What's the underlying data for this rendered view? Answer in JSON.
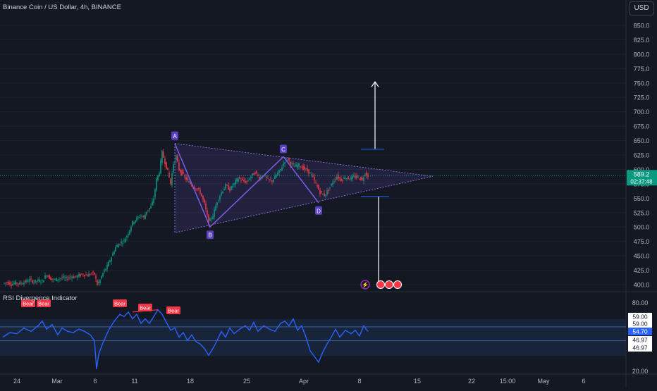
{
  "header": {
    "symbol_title": "Binance Coin / US Dollar, 4h, BINANCE",
    "currency_button": "USD"
  },
  "price_axis": {
    "ticks": [
      "850.0",
      "825.0",
      "800.0",
      "775.0",
      "750.0",
      "725.0",
      "700.0",
      "675.0",
      "650.0",
      "625.0",
      "600.0",
      "575.0",
      "550.0",
      "525.0",
      "500.0",
      "475.0",
      "450.0",
      "425.0",
      "400.0"
    ],
    "current_price": "589.2",
    "countdown": "02:37:48",
    "current_color": "#089981"
  },
  "time_axis": {
    "labels": [
      "24",
      "Mar",
      "6",
      "11",
      "18",
      "25",
      "Apr",
      "8",
      "15",
      "22",
      "15:00",
      "May",
      "6"
    ]
  },
  "pattern": {
    "points": [
      "A",
      "B",
      "C",
      "D"
    ],
    "fill_color": "#4a3a8c",
    "label_color": "#5b3fc4"
  },
  "markers": {
    "count": 4
  },
  "rsi_panel": {
    "title": "RSI Divergence Indicator",
    "bear_label": "Bear",
    "axis_ticks": [
      "80.00",
      "20.00"
    ],
    "value_labels": [
      "59.00",
      "59.00",
      "54.70",
      "46.97",
      "46.97"
    ],
    "line_color": "#2962ff",
    "bear_color": "#f23645"
  },
  "chart_data": {
    "type": "candlestick",
    "title": "Binance Coin / US Dollar, 4h, BINANCE",
    "ylim": [
      400,
      862
    ],
    "close_series": [
      [
        0,
        402
      ],
      [
        6,
        404
      ],
      [
        12,
        401
      ],
      [
        18,
        403
      ],
      [
        24,
        402
      ],
      [
        30,
        404
      ],
      [
        38,
        408
      ],
      [
        44,
        405
      ],
      [
        50,
        407
      ],
      [
        56,
        406
      ],
      [
        62,
        418
      ],
      [
        66,
        412
      ],
      [
        72,
        408
      ],
      [
        78,
        410
      ],
      [
        84,
        412
      ],
      [
        90,
        410
      ],
      [
        96,
        414
      ],
      [
        102,
        413
      ],
      [
        108,
        416
      ],
      [
        114,
        418
      ],
      [
        120,
        416
      ],
      [
        126,
        420
      ],
      [
        130,
        418
      ],
      [
        134,
        400
      ],
      [
        138,
        408
      ],
      [
        142,
        420
      ],
      [
        148,
        432
      ],
      [
        154,
        448
      ],
      [
        160,
        465
      ],
      [
        166,
        472
      ],
      [
        172,
        476
      ],
      [
        178,
        490
      ],
      [
        184,
        508
      ],
      [
        190,
        515
      ],
      [
        196,
        520
      ],
      [
        200,
        516
      ],
      [
        204,
        528
      ],
      [
        210,
        535
      ],
      [
        214,
        550
      ],
      [
        218,
        582
      ],
      [
        222,
        596
      ],
      [
        226,
        630
      ],
      [
        230,
        612
      ],
      [
        234,
        596
      ],
      [
        238,
        575
      ],
      [
        242,
        610
      ],
      [
        246,
        622
      ],
      [
        250,
        600
      ],
      [
        256,
        590
      ],
      [
        262,
        580
      ],
      [
        268,
        572
      ],
      [
        274,
        568
      ],
      [
        280,
        560
      ],
      [
        286,
        540
      ],
      [
        292,
        508
      ],
      [
        298,
        520
      ],
      [
        304,
        545
      ],
      [
        310,
        560
      ],
      [
        316,
        572
      ],
      [
        322,
        565
      ],
      [
        328,
        575
      ],
      [
        334,
        585
      ],
      [
        340,
        580
      ],
      [
        346,
        578
      ],
      [
        352,
        588
      ],
      [
        358,
        595
      ],
      [
        364,
        585
      ],
      [
        370,
        590
      ],
      [
        376,
        582
      ],
      [
        382,
        580
      ],
      [
        388,
        590
      ],
      [
        394,
        600
      ],
      [
        400,
        615
      ],
      [
        404,
        618
      ],
      [
        408,
        610
      ],
      [
        414,
        605
      ],
      [
        420,
        608
      ],
      [
        426,
        602
      ],
      [
        432,
        598
      ],
      [
        438,
        590
      ],
      [
        444,
        575
      ],
      [
        450,
        560
      ],
      [
        456,
        555
      ],
      [
        462,
        565
      ],
      [
        468,
        578
      ],
      [
        474,
        588
      ],
      [
        480,
        582
      ],
      [
        486,
        586
      ],
      [
        492,
        584
      ],
      [
        498,
        587
      ],
      [
        504,
        586
      ],
      [
        510,
        582
      ],
      [
        514,
        594
      ],
      [
        518,
        589
      ]
    ],
    "pattern_ABCD": {
      "A": 645,
      "B": 500,
      "C": 622,
      "D": 542
    },
    "triangle": {
      "upper_start": 645,
      "lower_start": 490,
      "apex": 588
    },
    "arrow_target": 752,
    "arrow_bottom_target": 403,
    "rsi_ylim": [
      20,
      80
    ],
    "rsi_bands": [
      46.97,
      59.0
    ],
    "rsi_current": 54.7,
    "rsi_series": [
      [
        0,
        50
      ],
      [
        10,
        54
      ],
      [
        20,
        53
      ],
      [
        30,
        58
      ],
      [
        40,
        55
      ],
      [
        50,
        60
      ],
      [
        56,
        64
      ],
      [
        62,
        57
      ],
      [
        70,
        61
      ],
      [
        78,
        52
      ],
      [
        84,
        58
      ],
      [
        92,
        55
      ],
      [
        100,
        54
      ],
      [
        108,
        57
      ],
      [
        116,
        55
      ],
      [
        124,
        52
      ],
      [
        130,
        47
      ],
      [
        133,
        22
      ],
      [
        136,
        35
      ],
      [
        142,
        45
      ],
      [
        150,
        56
      ],
      [
        158,
        64
      ],
      [
        166,
        70
      ],
      [
        172,
        68
      ],
      [
        178,
        72
      ],
      [
        184,
        66
      ],
      [
        190,
        70
      ],
      [
        196,
        62
      ],
      [
        202,
        66
      ],
      [
        208,
        62
      ],
      [
        214,
        68
      ],
      [
        220,
        74
      ],
      [
        226,
        70
      ],
      [
        232,
        63
      ],
      [
        238,
        56
      ],
      [
        244,
        58
      ],
      [
        250,
        50
      ],
      [
        256,
        54
      ],
      [
        262,
        47
      ],
      [
        268,
        52
      ],
      [
        274,
        46
      ],
      [
        280,
        44
      ],
      [
        286,
        40
      ],
      [
        292,
        34
      ],
      [
        298,
        40
      ],
      [
        304,
        47
      ],
      [
        310,
        55
      ],
      [
        316,
        50
      ],
      [
        322,
        58
      ],
      [
        328,
        53
      ],
      [
        336,
        57
      ],
      [
        344,
        60
      ],
      [
        350,
        56
      ],
      [
        356,
        63
      ],
      [
        362,
        55
      ],
      [
        370,
        60
      ],
      [
        378,
        57
      ],
      [
        386,
        55
      ],
      [
        394,
        62
      ],
      [
        400,
        64
      ],
      [
        406,
        60
      ],
      [
        412,
        66
      ],
      [
        418,
        56
      ],
      [
        424,
        60
      ],
      [
        430,
        50
      ],
      [
        436,
        38
      ],
      [
        442,
        33
      ],
      [
        448,
        28
      ],
      [
        454,
        37
      ],
      [
        460,
        44
      ],
      [
        466,
        50
      ],
      [
        472,
        57
      ],
      [
        478,
        50
      ],
      [
        486,
        56
      ],
      [
        494,
        53
      ],
      [
        500,
        56
      ],
      [
        506,
        51
      ],
      [
        512,
        60
      ],
      [
        518,
        55
      ]
    ]
  }
}
